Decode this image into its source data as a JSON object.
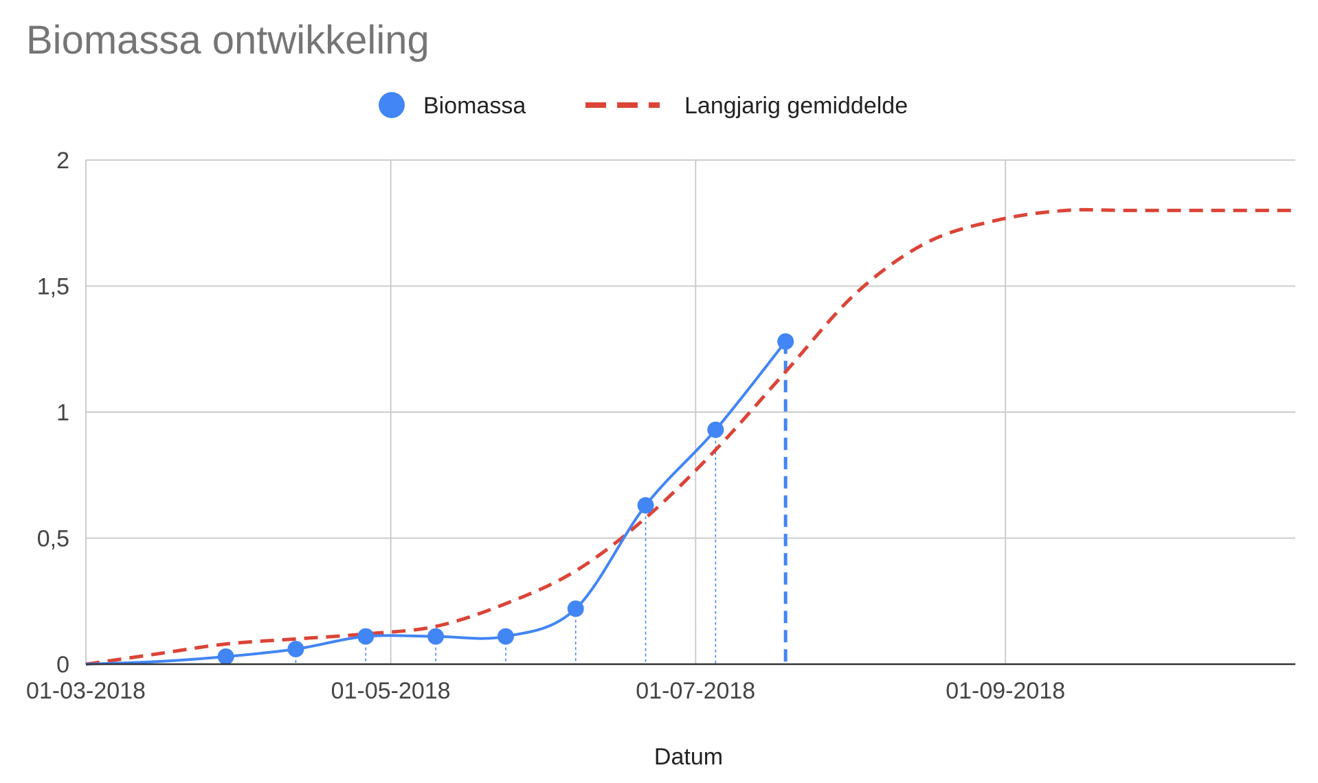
{
  "chart_data": {
    "type": "line",
    "title": "Biomassa ontwikkeling",
    "xlabel": "Datum",
    "ylabel": "",
    "x_axis": {
      "type": "date",
      "min": "2018-03-01",
      "max": "2018-10-29",
      "ticks": [
        {
          "date": "2018-03-01",
          "label": "01-03-2018"
        },
        {
          "date": "2018-05-01",
          "label": "01-05-2018"
        },
        {
          "date": "2018-07-01",
          "label": "01-07-2018"
        },
        {
          "date": "2018-09-01",
          "label": "01-09-2018"
        }
      ]
    },
    "y_axis": {
      "min": 0,
      "max": 2,
      "ticks": [
        {
          "value": 0,
          "label": "0"
        },
        {
          "value": 0.5,
          "label": "0,5"
        },
        {
          "value": 1,
          "label": "1"
        },
        {
          "value": 1.5,
          "label": "1,5"
        },
        {
          "value": 2,
          "label": "2"
        }
      ]
    },
    "grid": true,
    "legend": {
      "position": "top"
    },
    "series": [
      {
        "name": "Biomassa",
        "color": "#4285f4",
        "style": "solid-with-markers",
        "points": [
          {
            "x": "2018-03-01",
            "y": 0.0,
            "marker": false
          },
          {
            "x": "2018-03-15",
            "y": 0.01,
            "marker": false
          },
          {
            "x": "2018-03-29",
            "y": 0.03,
            "marker": true
          },
          {
            "x": "2018-04-12",
            "y": 0.06,
            "marker": true
          },
          {
            "x": "2018-04-26",
            "y": 0.11,
            "marker": true
          },
          {
            "x": "2018-05-10",
            "y": 0.11,
            "marker": true
          },
          {
            "x": "2018-05-24",
            "y": 0.11,
            "marker": true
          },
          {
            "x": "2018-06-07",
            "y": 0.22,
            "marker": true
          },
          {
            "x": "2018-06-21",
            "y": 0.63,
            "marker": true
          },
          {
            "x": "2018-07-05",
            "y": 0.93,
            "marker": true
          },
          {
            "x": "2018-07-19",
            "y": 1.28,
            "marker": true
          }
        ]
      },
      {
        "name": "Langjarig gemiddelde",
        "color": "#db4437",
        "style": "dashed",
        "points": [
          {
            "x": "2018-03-01",
            "y": 0.0
          },
          {
            "x": "2018-03-15",
            "y": 0.04
          },
          {
            "x": "2018-03-29",
            "y": 0.08
          },
          {
            "x": "2018-04-12",
            "y": 0.1
          },
          {
            "x": "2018-04-26",
            "y": 0.12
          },
          {
            "x": "2018-05-10",
            "y": 0.15
          },
          {
            "x": "2018-05-24",
            "y": 0.24
          },
          {
            "x": "2018-06-07",
            "y": 0.37
          },
          {
            "x": "2018-06-21",
            "y": 0.58
          },
          {
            "x": "2018-07-05",
            "y": 0.85
          },
          {
            "x": "2018-07-19",
            "y": 1.16
          },
          {
            "x": "2018-08-02",
            "y": 1.47
          },
          {
            "x": "2018-08-16",
            "y": 1.67
          },
          {
            "x": "2018-08-30",
            "y": 1.76
          },
          {
            "x": "2018-09-13",
            "y": 1.8
          },
          {
            "x": "2018-09-27",
            "y": 1.8
          },
          {
            "x": "2018-10-29",
            "y": 1.8
          }
        ]
      }
    ],
    "drop_lines": [
      {
        "x": "2018-04-12",
        "y": 0.06,
        "emphasis": false
      },
      {
        "x": "2018-04-26",
        "y": 0.11,
        "emphasis": false
      },
      {
        "x": "2018-05-10",
        "y": 0.11,
        "emphasis": false
      },
      {
        "x": "2018-05-24",
        "y": 0.11,
        "emphasis": false
      },
      {
        "x": "2018-06-07",
        "y": 0.22,
        "emphasis": false
      },
      {
        "x": "2018-06-21",
        "y": 0.63,
        "emphasis": false
      },
      {
        "x": "2018-07-05",
        "y": 0.93,
        "emphasis": false
      },
      {
        "x": "2018-07-19",
        "y": 1.28,
        "emphasis": true
      }
    ]
  }
}
